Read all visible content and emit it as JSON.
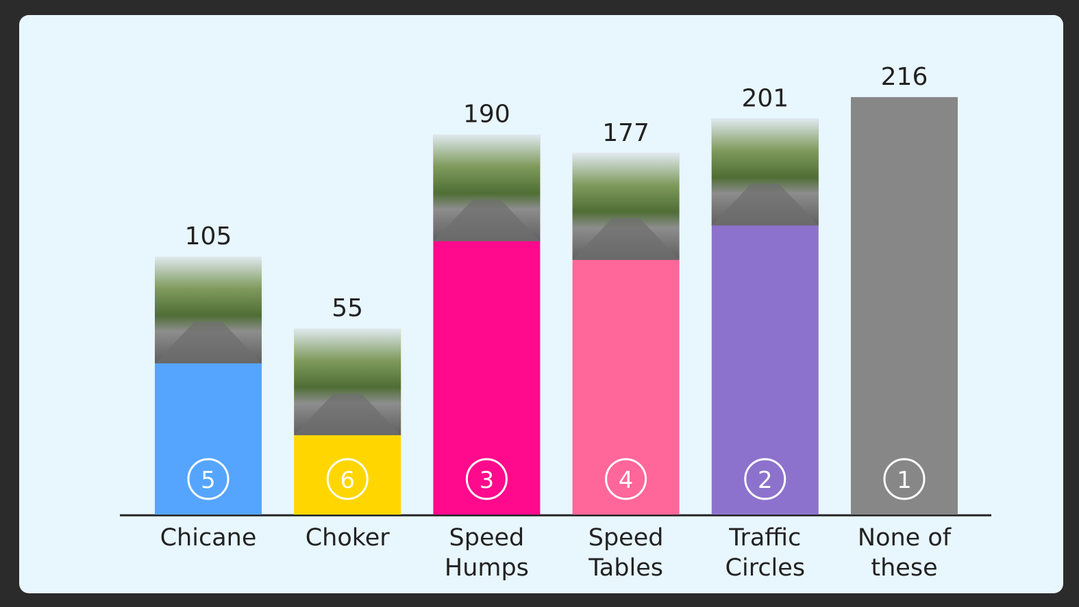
{
  "chart_data": {
    "type": "bar",
    "categories": [
      [
        "Chicane"
      ],
      [
        "Choker"
      ],
      [
        "Speed",
        "Humps"
      ],
      [
        "Speed",
        "Tables"
      ],
      [
        "Traffic",
        "Circles"
      ],
      [
        "None of",
        "these"
      ]
    ],
    "values": [
      105,
      55,
      190,
      177,
      201,
      216
    ],
    "ranks": [
      5,
      6,
      3,
      4,
      2,
      1
    ],
    "colors": [
      "#55a5ff",
      "#ffd600",
      "#ff0a8c",
      "#ff6699",
      "#8c72cc",
      "#878787"
    ],
    "photos": [
      true,
      true,
      true,
      true,
      true,
      false
    ]
  }
}
